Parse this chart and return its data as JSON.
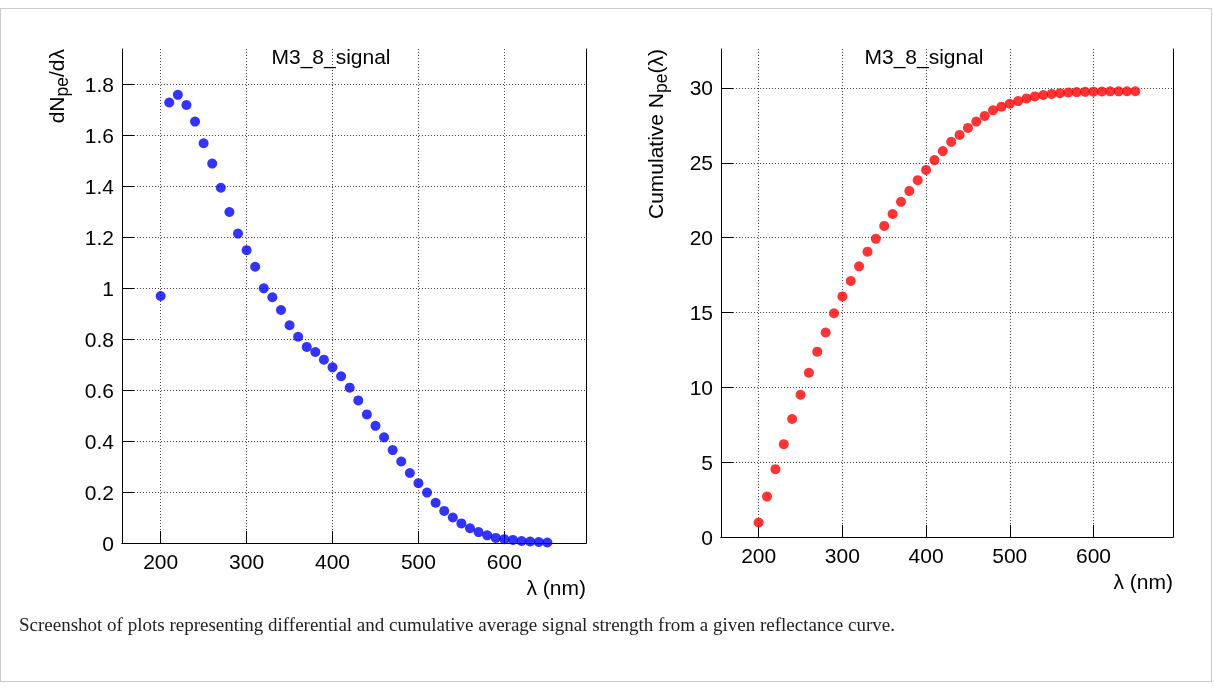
{
  "chart_data": [
    {
      "type": "scatter",
      "title": "M3_8_signal",
      "xlabel": "λ (nm)",
      "ylabel": "dN$_{pe}$/dλ",
      "color": "#0000ff",
      "marker": "circle",
      "grid": true,
      "x": [
        200,
        210,
        220,
        230,
        240,
        250,
        260,
        270,
        280,
        290,
        300,
        310,
        320,
        330,
        340,
        350,
        360,
        370,
        380,
        390,
        400,
        410,
        420,
        430,
        440,
        450,
        460,
        470,
        480,
        490,
        500,
        510,
        520,
        530,
        540,
        550,
        560,
        570,
        580,
        590,
        600,
        610,
        620,
        630,
        640,
        650
      ],
      "values": [
        0.97,
        1.73,
        1.76,
        1.72,
        1.655,
        1.57,
        1.49,
        1.395,
        1.3,
        1.215,
        1.15,
        1.085,
        1.0,
        0.965,
        0.915,
        0.855,
        0.81,
        0.77,
        0.75,
        0.72,
        0.69,
        0.655,
        0.61,
        0.56,
        0.505,
        0.46,
        0.415,
        0.365,
        0.32,
        0.275,
        0.235,
        0.198,
        0.158,
        0.126,
        0.1,
        0.077,
        0.058,
        0.043,
        0.03,
        0.02,
        0.015,
        0.012,
        0.008,
        0.006,
        0.004,
        0.002
      ],
      "xlim": [
        155,
        695
      ],
      "xticks": [
        200,
        300,
        400,
        500,
        600
      ],
      "ylim": [
        0,
        1.94
      ],
      "yticks": [
        0,
        0.2,
        0.4,
        0.6,
        0.8,
        1,
        1.2,
        1.4,
        1.6,
        1.8
      ],
      "annotations": [
        "Screenshot of plots representing differential and cumulative average signal strength from a given reflectance curve."
      ]
    },
    {
      "type": "scatter",
      "title": "M3_8_signal",
      "xlabel": "λ (nm)",
      "ylabel": "Cumulative N$_{pe}$(λ)",
      "color": "#ff0000",
      "marker": "circle",
      "grid": true,
      "x": [
        200,
        210,
        220,
        230,
        240,
        250,
        260,
        270,
        280,
        290,
        300,
        310,
        320,
        330,
        340,
        350,
        360,
        370,
        380,
        390,
        400,
        410,
        420,
        430,
        440,
        450,
        460,
        470,
        480,
        490,
        500,
        510,
        520,
        530,
        540,
        550,
        560,
        570,
        580,
        590,
        600,
        610,
        620,
        630,
        640,
        650
      ],
      "values": [
        0.97,
        2.7,
        4.53,
        6.2,
        7.88,
        9.5,
        10.97,
        12.38,
        13.66,
        14.95,
        16.07,
        17.1,
        18.08,
        19.06,
        19.92,
        20.78,
        21.58,
        22.39,
        23.12,
        23.84,
        24.52,
        25.18,
        25.78,
        26.4,
        26.86,
        27.33,
        27.75,
        28.13,
        28.5,
        28.75,
        28.94,
        29.12,
        29.3,
        29.43,
        29.53,
        29.6,
        29.65,
        29.7,
        29.72,
        29.74,
        29.75,
        29.76,
        29.77,
        29.77,
        29.78,
        29.78
      ],
      "xlim": [
        155,
        695
      ],
      "xticks": [
        200,
        300,
        400,
        500,
        600
      ],
      "ylim": [
        0,
        32.6
      ],
      "yticks": [
        0,
        5,
        10,
        15,
        20,
        25,
        30
      ]
    }
  ]
}
